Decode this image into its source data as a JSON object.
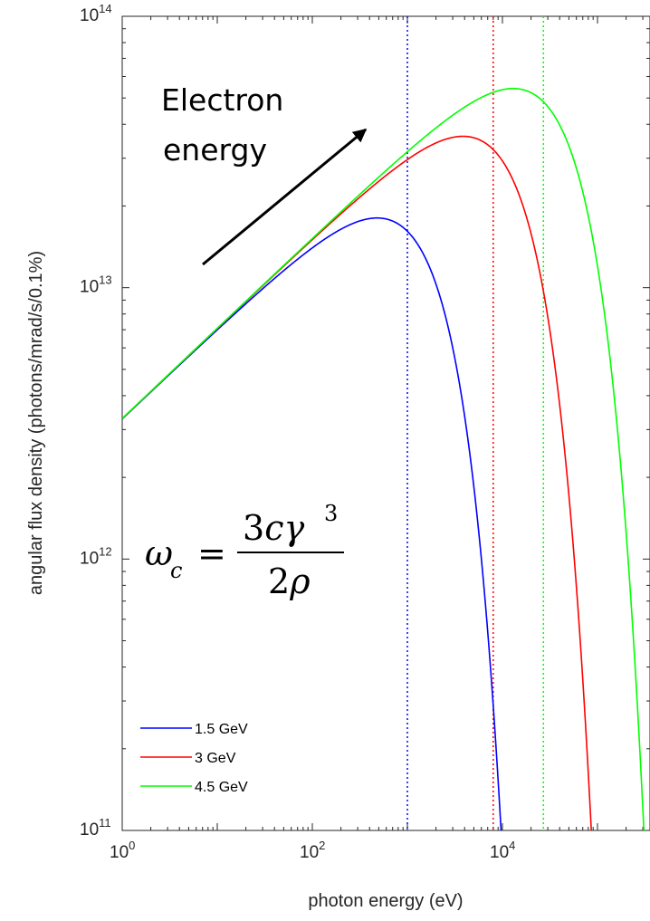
{
  "chart_data": {
    "type": "line",
    "title": "",
    "xlabel": "photon energy (eV)",
    "ylabel": "angular flux density (photons/mrad/s/0.1%)",
    "x_scale": "log",
    "y_scale": "log",
    "xlim": [
      1,
      1000000
    ],
    "ylim": [
      100000000000.0,
      100000000000000.0
    ],
    "x_ticks": [
      {
        "base": "10",
        "exp": "0",
        "value": 1
      },
      {
        "base": "10",
        "exp": "2",
        "value": 100
      },
      {
        "base": "10",
        "exp": "4",
        "value": 10000
      }
    ],
    "y_ticks": [
      {
        "base": "10",
        "exp": "11",
        "value": 100000000000.0
      },
      {
        "base": "10",
        "exp": "12",
        "value": 1000000000000.0
      },
      {
        "base": "10",
        "exp": "13",
        "value": 10000000000000.0
      },
      {
        "base": "10",
        "exp": "14",
        "value": 100000000000000.0
      }
    ],
    "legend_position": "bottom-left",
    "series": [
      {
        "name": "1.5 GeV",
        "color": "#0000ff",
        "critical_energy_eV": 1000,
        "peak": {
          "x": 500,
          "y": 17000000000000.0
        }
      },
      {
        "name": "3 GeV",
        "color": "#ff0000",
        "critical_energy_eV": 8000,
        "peak": {
          "x": 4000,
          "y": 34000000000000.0
        }
      },
      {
        "name": "4.5 GeV",
        "color": "#00ff00",
        "critical_energy_eV": 27000,
        "peak": {
          "x": 13500,
          "y": 51000000000000.0
        }
      }
    ],
    "low_energy_asymptote": {
      "x": 1,
      "y": 3300000000000.0
    },
    "annotations": [
      {
        "text_lines": [
          "Electron",
          "energy"
        ],
        "arrow": true
      },
      {
        "formula": "ω_c = 3cγ^3 / 2ρ"
      }
    ]
  }
}
